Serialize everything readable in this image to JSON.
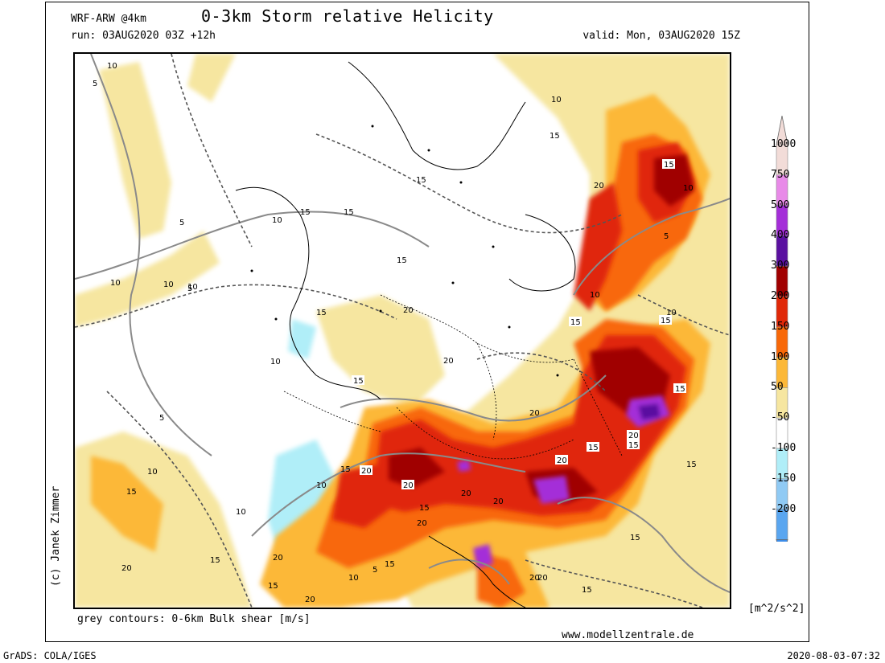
{
  "header": {
    "model": "WRF-ARW @4km",
    "title": "0-3km Storm relative Helicity",
    "run": "run: 03AUG2020 03Z +12h",
    "valid": "valid: Mon, 03AUG2020 15Z"
  },
  "author": "(c) Janek Zimmer",
  "footer_note": "grey contours: 0-6km Bulk shear [m/s]",
  "website": "www.modellzentrale.de",
  "software": "GrADS: COLA/IGES",
  "timestamp": "2020-08-03-07:32",
  "legend": {
    "unit": "[m^2/s^2]",
    "levels": [
      {
        "label": "1000",
        "color": "#f2dcd8"
      },
      {
        "label": "750",
        "color": "#e88ae8"
      },
      {
        "label": "500",
        "color": "#a42ed8"
      },
      {
        "label": "400",
        "color": "#5a10a0"
      },
      {
        "label": "300",
        "color": "#a00000"
      },
      {
        "label": "200",
        "color": "#e02808"
      },
      {
        "label": "150",
        "color": "#f86808"
      },
      {
        "label": "100",
        "color": "#fcb838"
      },
      {
        "label": "50",
        "color": "#f6e6a0"
      },
      {
        "label": "-50",
        "color": "#ffffff"
      },
      {
        "label": "-100",
        "color": "#b0eef8"
      },
      {
        "label": "-150",
        "color": "#90caf4"
      },
      {
        "label": "-200",
        "color": "#5aa6f0"
      }
    ],
    "bottom_color": "#3c8ce8",
    "top_color": "#f2dcd8"
  },
  "contour_labels": [
    "5",
    "10",
    "15",
    "20"
  ]
}
